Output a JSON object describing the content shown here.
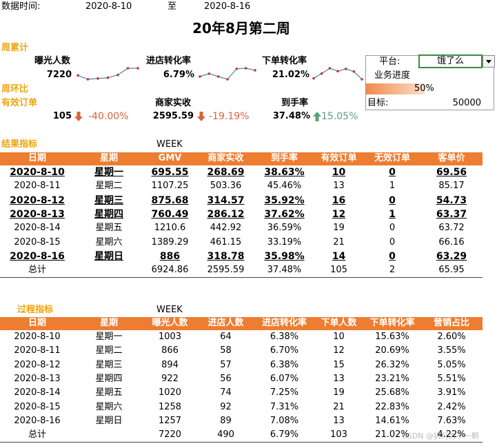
{
  "header": {
    "date_label": "数据时间:",
    "start_date": "2020-8-10",
    "to": "至",
    "end_date": "2020-8-16",
    "title": "20年8月第二周"
  },
  "weekly_total": {
    "label": "周累计",
    "metrics": [
      {
        "name": "曝光人数",
        "value": "7220",
        "trend": [
          1003,
          866,
          894,
          922,
          1020,
          1258,
          1257
        ]
      },
      {
        "name": "进店转化率",
        "value": "6.79%",
        "trend": [
          6.38,
          6.7,
          6.38,
          6.07,
          7.25,
          7.31,
          7.08
        ]
      },
      {
        "name": "下单转化率",
        "value": "21.02%",
        "trend": [
          15.63,
          20.69,
          26.32,
          23.21,
          25.68,
          22.83,
          14.61
        ]
      }
    ]
  },
  "week_over_week": {
    "label": "周环比",
    "metrics": [
      {
        "name": "有效订单",
        "value": "105",
        "change": "-40.00%",
        "direction": "down"
      },
      {
        "name": "商家实收",
        "value": "2595.59",
        "change": "-19.19%",
        "direction": "down"
      },
      {
        "name": "到手率",
        "value": "37.48%",
        "change": "15.05%",
        "direction": "up"
      }
    ]
  },
  "platform_panel": {
    "platform_label": "平台:",
    "platform": "饿了么",
    "progress_label": "业务进度",
    "progress": 50,
    "progress_text": "50%",
    "target_label": "目标:",
    "target": "50000"
  },
  "result_table": {
    "title": "结果指标",
    "week_label": "WEEK",
    "columns": [
      "日期",
      "星期",
      "GMV",
      "商家实收",
      "到手率",
      "有效订单",
      "无效订单",
      "客单价"
    ],
    "rows": [
      {
        "cells": [
          "2020-8-10",
          "星期一",
          "695.55",
          "268.69",
          "38.63%",
          "10",
          "0",
          "69.56"
        ],
        "highlight": true
      },
      {
        "cells": [
          "2020-8-11",
          "星期二",
          "1107.25",
          "503.36",
          "45.46%",
          "13",
          "1",
          "85.17"
        ],
        "highlight": false
      },
      {
        "cells": [
          "2020-8-12",
          "星期三",
          "875.68",
          "314.57",
          "35.92%",
          "16",
          "0",
          "54.73"
        ],
        "highlight": true
      },
      {
        "cells": [
          "2020-8-13",
          "星期四",
          "760.49",
          "286.12",
          "37.62%",
          "12",
          "1",
          "63.37"
        ],
        "highlight": true
      },
      {
        "cells": [
          "2020-8-14",
          "星期五",
          "1210.6",
          "442.92",
          "36.59%",
          "19",
          "0",
          "63.72"
        ],
        "highlight": false
      },
      {
        "cells": [
          "2020-8-15",
          "星期六",
          "1389.29",
          "461.15",
          "33.19%",
          "21",
          "0",
          "66.16"
        ],
        "highlight": false
      },
      {
        "cells": [
          "2020-8-16",
          "星期日",
          "886",
          "318.78",
          "35.98%",
          "14",
          "0",
          "63.29"
        ],
        "highlight": true
      }
    ],
    "total": {
      "label": "总计",
      "cells": [
        "6924.86",
        "2595.59",
        "37.48%",
        "105",
        "2",
        "65.95"
      ]
    }
  },
  "process_table": {
    "title": "过程指标",
    "week_label": "WEEK",
    "columns": [
      "日期",
      "星期",
      "曝光人数",
      "进店人数",
      "进店转化率",
      "下单人数",
      "下单转化率",
      "营销占比"
    ],
    "rows": [
      {
        "cells": [
          "2020-8-10",
          "星期一",
          "1003",
          "64",
          "6.38%",
          "10",
          "15.63%",
          "2.60%"
        ]
      },
      {
        "cells": [
          "2020-8-11",
          "星期二",
          "866",
          "58",
          "6.70%",
          "12",
          "20.69%",
          "3.55%"
        ]
      },
      {
        "cells": [
          "2020-8-12",
          "星期三",
          "894",
          "57",
          "6.38%",
          "15",
          "26.32%",
          "5.05%"
        ]
      },
      {
        "cells": [
          "2020-8-13",
          "星期四",
          "922",
          "56",
          "6.07%",
          "13",
          "23.21%",
          "5.51%"
        ]
      },
      {
        "cells": [
          "2020-8-14",
          "星期五",
          "1020",
          "74",
          "7.25%",
          "19",
          "25.68%",
          "3.91%"
        ]
      },
      {
        "cells": [
          "2020-8-15",
          "星期六",
          "1258",
          "92",
          "7.31%",
          "21",
          "22.83%",
          "2.42%"
        ]
      },
      {
        "cells": [
          "2020-8-16",
          "星期日",
          "1257",
          "89",
          "7.08%",
          "13",
          "14.61%",
          "7.63%"
        ]
      }
    ],
    "total": {
      "label": "总计",
      "cells": [
        "7220",
        "490",
        "6.79%",
        "103",
        "21.02%",
        "4.22%"
      ]
    }
  },
  "watermark": "CSDN @执行力不一颗"
}
